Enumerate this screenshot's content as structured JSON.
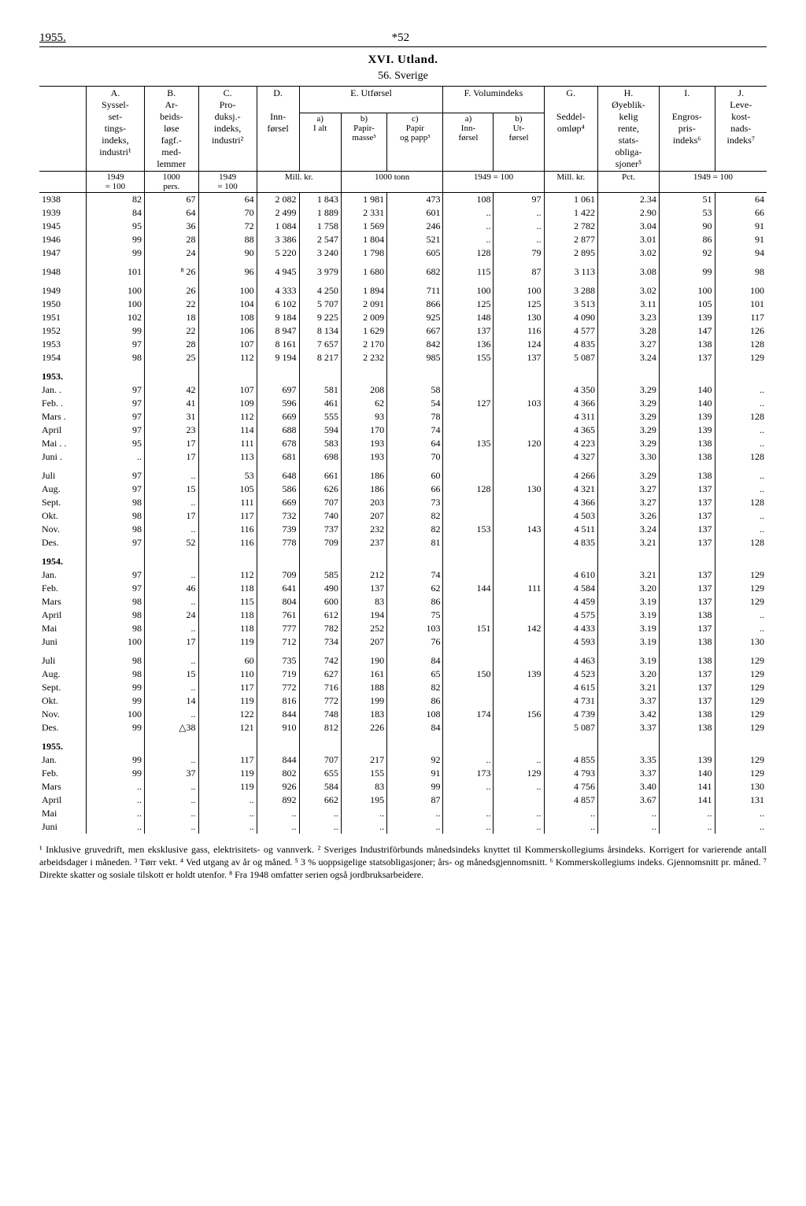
{
  "page": {
    "year": "1955.",
    "page_number": "*52",
    "section_title": "XVI. Utland.",
    "subtitle": "56. Sverige"
  },
  "headers": {
    "A": "A.\nSyssel-\nset-\ntings-\nindeks,\nindustri¹",
    "B": "B.\nAr-\nbeids-\nløse\nfagf.-\nmed-\nlemmer",
    "C": "C.\nPro-\nduksj.-\nindeks,\nindustri²",
    "D": "D.\n\nInn-\nførsel",
    "E": "E.\nUtførsel",
    "E_a": "a)\nI alt",
    "E_b": "b)\nPapir-\nmasse³",
    "E_c": "c)\nPapir\nog papp³",
    "F": "F.\nVolumindeks",
    "F_a": "a)\nInn-\nførsel",
    "F_b": "b)\nUt-\nførsel",
    "G": "G.\n\nSeddel-\nomløp⁴",
    "H": "H.\nØyeblik-\nkelig\nrente,\nstats-\nobliga-\nsjoner⁵",
    "I": "I.\n\nEngros-\npris-\nindeks⁶",
    "J": "J.\nLeve-\nkost-\nnads-\nindeks⁷"
  },
  "units": {
    "A": "1949\n= 100",
    "B": "1000\npers.",
    "C": "1949\n= 100",
    "DE": "Mill. kr.",
    "Ebc": "1000 tonn",
    "F": "1949 = 100",
    "G": "Mill. kr.",
    "H": "Pct.",
    "IJ": "1949 = 100"
  },
  "rows": [
    {
      "label": "1938",
      "A": "82",
      "B": "67",
      "C": "64",
      "D": "2 082",
      "Ea": "1 843",
      "Eb": "1 981",
      "Ec": "473",
      "Fa": "108",
      "Fb": "97",
      "G": "1 061",
      "H": "2.34",
      "I": "51",
      "J": "64"
    },
    {
      "label": "1939",
      "A": "84",
      "B": "64",
      "C": "70",
      "D": "2 499",
      "Ea": "1 889",
      "Eb": "2 331",
      "Ec": "601",
      "Fa": "..",
      "Fb": "..",
      "G": "1 422",
      "H": "2.90",
      "I": "53",
      "J": "66"
    },
    {
      "label": "1945",
      "A": "95",
      "B": "36",
      "C": "72",
      "D": "1 084",
      "Ea": "1 758",
      "Eb": "1 569",
      "Ec": "246",
      "Fa": "..",
      "Fb": "..",
      "G": "2 782",
      "H": "3.04",
      "I": "90",
      "J": "91"
    },
    {
      "label": "1946",
      "A": "99",
      "B": "28",
      "C": "88",
      "D": "3 386",
      "Ea": "2 547",
      "Eb": "1 804",
      "Ec": "521",
      "Fa": "..",
      "Fb": "..",
      "G": "2 877",
      "H": "3.01",
      "I": "86",
      "J": "91"
    },
    {
      "label": "1947",
      "A": "99",
      "B": "24",
      "C": "90",
      "D": "5 220",
      "Ea": "3 240",
      "Eb": "1 798",
      "Ec": "605",
      "Fa": "128",
      "Fb": "79",
      "G": "2 895",
      "H": "3.02",
      "I": "92",
      "J": "94"
    },
    {
      "label": "1948",
      "A": "101",
      "B": "⁸ 26",
      "C": "96",
      "D": "4 945",
      "Ea": "3 979",
      "Eb": "1 680",
      "Ec": "682",
      "Fa": "115",
      "Fb": "87",
      "G": "3 113",
      "H": "3.08",
      "I": "99",
      "J": "98",
      "spacer": true
    },
    {
      "label": "1949",
      "A": "100",
      "B": "26",
      "C": "100",
      "D": "4 333",
      "Ea": "4 250",
      "Eb": "1 894",
      "Ec": "711",
      "Fa": "100",
      "Fb": "100",
      "G": "3 288",
      "H": "3.02",
      "I": "100",
      "J": "100",
      "spacer": true
    },
    {
      "label": "1950",
      "A": "100",
      "B": "22",
      "C": "104",
      "D": "6 102",
      "Ea": "5 707",
      "Eb": "2 091",
      "Ec": "866",
      "Fa": "125",
      "Fb": "125",
      "G": "3 513",
      "H": "3.11",
      "I": "105",
      "J": "101"
    },
    {
      "label": "1951",
      "A": "102",
      "B": "18",
      "C": "108",
      "D": "9 184",
      "Ea": "9 225",
      "Eb": "2 009",
      "Ec": "925",
      "Fa": "148",
      "Fb": "130",
      "G": "4 090",
      "H": "3.23",
      "I": "139",
      "J": "117"
    },
    {
      "label": "1952",
      "A": "99",
      "B": "22",
      "C": "106",
      "D": "8 947",
      "Ea": "8 134",
      "Eb": "1 629",
      "Ec": "667",
      "Fa": "137",
      "Fb": "116",
      "G": "4 577",
      "H": "3.28",
      "I": "147",
      "J": "126"
    },
    {
      "label": "1953",
      "A": "97",
      "B": "28",
      "C": "107",
      "D": "8 161",
      "Ea": "7 657",
      "Eb": "2 170",
      "Ec": "842",
      "Fa": "136",
      "Fb": "124",
      "G": "4 835",
      "H": "3.27",
      "I": "138",
      "J": "128"
    },
    {
      "label": "1954",
      "A": "98",
      "B": "25",
      "C": "112",
      "D": "9 194",
      "Ea": "8 217",
      "Eb": "2 232",
      "Ec": "985",
      "Fa": "155",
      "Fb": "137",
      "G": "5 087",
      "H": "3.24",
      "I": "137",
      "J": "129"
    },
    {
      "label": "1953.",
      "group": true
    },
    {
      "label": "Jan. .",
      "A": "97",
      "B": "42",
      "C": "107",
      "D": "697",
      "Ea": "581",
      "Eb": "208",
      "Ec": "58",
      "Fa": "",
      "Fb": "",
      "G": "4 350",
      "H": "3.29",
      "I": "140",
      "J": ".."
    },
    {
      "label": "Feb. .",
      "A": "97",
      "B": "41",
      "C": "109",
      "D": "596",
      "Ea": "461",
      "Eb": "62",
      "Ec": "54",
      "Fa": "127",
      "Fb": "103",
      "G": "4 366",
      "H": "3.29",
      "I": "140",
      "J": ".."
    },
    {
      "label": "Mars .",
      "A": "97",
      "B": "31",
      "C": "112",
      "D": "669",
      "Ea": "555",
      "Eb": "93",
      "Ec": "78",
      "Fa": "",
      "Fb": "",
      "G": "4 311",
      "H": "3.29",
      "I": "139",
      "J": "128"
    },
    {
      "label": "April",
      "A": "97",
      "B": "23",
      "C": "114",
      "D": "688",
      "Ea": "594",
      "Eb": "170",
      "Ec": "74",
      "Fa": "",
      "Fb": "",
      "G": "4 365",
      "H": "3.29",
      "I": "139",
      "J": ".."
    },
    {
      "label": "Mai . .",
      "A": "95",
      "B": "17",
      "C": "111",
      "D": "678",
      "Ea": "583",
      "Eb": "193",
      "Ec": "64",
      "Fa": "135",
      "Fb": "120",
      "G": "4 223",
      "H": "3.29",
      "I": "138",
      "J": ".."
    },
    {
      "label": "Juni .",
      "A": "..",
      "B": "17",
      "C": "113",
      "D": "681",
      "Ea": "698",
      "Eb": "193",
      "Ec": "70",
      "Fa": "",
      "Fb": "",
      "G": "4 327",
      "H": "3.30",
      "I": "138",
      "J": "128"
    },
    {
      "label": "Juli",
      "A": "97",
      "B": "..",
      "C": "53",
      "D": "648",
      "Ea": "661",
      "Eb": "186",
      "Ec": "60",
      "Fa": "",
      "Fb": "",
      "G": "4 266",
      "H": "3.29",
      "I": "138",
      "J": "..",
      "spacer": true
    },
    {
      "label": "Aug.",
      "A": "97",
      "B": "15",
      "C": "105",
      "D": "586",
      "Ea": "626",
      "Eb": "186",
      "Ec": "66",
      "Fa": "128",
      "Fb": "130",
      "G": "4 321",
      "H": "3.27",
      "I": "137",
      "J": ".."
    },
    {
      "label": "Sept.",
      "A": "98",
      "B": "..",
      "C": "111",
      "D": "669",
      "Ea": "707",
      "Eb": "203",
      "Ec": "73",
      "Fa": "",
      "Fb": "",
      "G": "4 366",
      "H": "3.27",
      "I": "137",
      "J": "128"
    },
    {
      "label": "Okt.",
      "A": "98",
      "B": "17",
      "C": "117",
      "D": "732",
      "Ea": "740",
      "Eb": "207",
      "Ec": "82",
      "Fa": "",
      "Fb": "",
      "G": "4 503",
      "H": "3.26",
      "I": "137",
      "J": ".."
    },
    {
      "label": "Nov.",
      "A": "98",
      "B": "..",
      "C": "116",
      "D": "739",
      "Ea": "737",
      "Eb": "232",
      "Ec": "82",
      "Fa": "153",
      "Fb": "143",
      "G": "4 511",
      "H": "3.24",
      "I": "137",
      "J": ".."
    },
    {
      "label": "Des.",
      "A": "97",
      "B": "52",
      "C": "116",
      "D": "778",
      "Ea": "709",
      "Eb": "237",
      "Ec": "81",
      "Fa": "",
      "Fb": "",
      "G": "4 835",
      "H": "3.21",
      "I": "137",
      "J": "128"
    },
    {
      "label": "1954.",
      "group": true
    },
    {
      "label": "Jan.",
      "A": "97",
      "B": "..",
      "C": "112",
      "D": "709",
      "Ea": "585",
      "Eb": "212",
      "Ec": "74",
      "Fa": "",
      "Fb": "",
      "G": "4 610",
      "H": "3.21",
      "I": "137",
      "J": "129"
    },
    {
      "label": "Feb.",
      "A": "97",
      "B": "46",
      "C": "118",
      "D": "641",
      "Ea": "490",
      "Eb": "137",
      "Ec": "62",
      "Fa": "144",
      "Fb": "111",
      "G": "4 584",
      "H": "3.20",
      "I": "137",
      "J": "129"
    },
    {
      "label": "Mars",
      "A": "98",
      "B": "..",
      "C": "115",
      "D": "804",
      "Ea": "600",
      "Eb": "83",
      "Ec": "86",
      "Fa": "",
      "Fb": "",
      "G": "4 459",
      "H": "3.19",
      "I": "137",
      "J": "129"
    },
    {
      "label": "April",
      "A": "98",
      "B": "24",
      "C": "118",
      "D": "761",
      "Ea": "612",
      "Eb": "194",
      "Ec": "75",
      "Fa": "",
      "Fb": "",
      "G": "4 575",
      "H": "3.19",
      "I": "138",
      "J": ".."
    },
    {
      "label": "Mai",
      "A": "98",
      "B": "..",
      "C": "118",
      "D": "777",
      "Ea": "782",
      "Eb": "252",
      "Ec": "103",
      "Fa": "151",
      "Fb": "142",
      "G": "4 433",
      "H": "3.19",
      "I": "137",
      "J": ".."
    },
    {
      "label": "Juni",
      "A": "100",
      "B": "17",
      "C": "119",
      "D": "712",
      "Ea": "734",
      "Eb": "207",
      "Ec": "76",
      "Fa": "",
      "Fb": "",
      "G": "4 593",
      "H": "3.19",
      "I": "138",
      "J": "130"
    },
    {
      "label": "Juli",
      "A": "98",
      "B": "..",
      "C": "60",
      "D": "735",
      "Ea": "742",
      "Eb": "190",
      "Ec": "84",
      "Fa": "",
      "Fb": "",
      "G": "4 463",
      "H": "3.19",
      "I": "138",
      "J": "129",
      "spacer": true
    },
    {
      "label": "Aug.",
      "A": "98",
      "B": "15",
      "C": "110",
      "D": "719",
      "Ea": "627",
      "Eb": "161",
      "Ec": "65",
      "Fa": "150",
      "Fb": "139",
      "G": "4 523",
      "H": "3.20",
      "I": "137",
      "J": "129"
    },
    {
      "label": "Sept.",
      "A": "99",
      "B": "..",
      "C": "117",
      "D": "772",
      "Ea": "716",
      "Eb": "188",
      "Ec": "82",
      "Fa": "",
      "Fb": "",
      "G": "4 615",
      "H": "3.21",
      "I": "137",
      "J": "129"
    },
    {
      "label": "Okt.",
      "A": "99",
      "B": "14",
      "C": "119",
      "D": "816",
      "Ea": "772",
      "Eb": "199",
      "Ec": "86",
      "Fa": "",
      "Fb": "",
      "G": "4 731",
      "H": "3.37",
      "I": "137",
      "J": "129"
    },
    {
      "label": "Nov.",
      "A": "100",
      "B": "..",
      "C": "122",
      "D": "844",
      "Ea": "748",
      "Eb": "183",
      "Ec": "108",
      "Fa": "174",
      "Fb": "156",
      "G": "4 739",
      "H": "3.42",
      "I": "138",
      "J": "129"
    },
    {
      "label": "Des.",
      "A": "99",
      "B": "△38",
      "C": "121",
      "D": "910",
      "Ea": "812",
      "Eb": "226",
      "Ec": "84",
      "Fa": "",
      "Fb": "",
      "G": "5 087",
      "H": "3.37",
      "I": "138",
      "J": "129"
    },
    {
      "label": "1955.",
      "group": true
    },
    {
      "label": "Jan.",
      "A": "99",
      "B": "..",
      "C": "117",
      "D": "844",
      "Ea": "707",
      "Eb": "217",
      "Ec": "92",
      "Fa": "..",
      "Fb": "..",
      "G": "4 855",
      "H": "3.35",
      "I": "139",
      "J": "129"
    },
    {
      "label": "Feb.",
      "A": "99",
      "B": "37",
      "C": "119",
      "D": "802",
      "Ea": "655",
      "Eb": "155",
      "Ec": "91",
      "Fa": "173",
      "Fb": "129",
      "G": "4 793",
      "H": "3.37",
      "I": "140",
      "J": "129"
    },
    {
      "label": "Mars",
      "A": "..",
      "B": "..",
      "C": "119",
      "D": "926",
      "Ea": "584",
      "Eb": "83",
      "Ec": "99",
      "Fa": "..",
      "Fb": "..",
      "G": "4 756",
      "H": "3.40",
      "I": "141",
      "J": "130"
    },
    {
      "label": "April",
      "A": "..",
      "B": "..",
      "C": "..",
      "D": "892",
      "Ea": "662",
      "Eb": "195",
      "Ec": "87",
      "Fa": "",
      "Fb": "",
      "G": "4 857",
      "H": "3.67",
      "I": "141",
      "J": "131"
    },
    {
      "label": "Mai",
      "A": "..",
      "B": "..",
      "C": "..",
      "D": "..",
      "Ea": "..",
      "Eb": "..",
      "Ec": "..",
      "Fa": "..",
      "Fb": "..",
      "G": "..",
      "H": "..",
      "I": "..",
      "J": ".."
    },
    {
      "label": "Juni",
      "A": "..",
      "B": "..",
      "C": "..",
      "D": "..",
      "Ea": "..",
      "Eb": "..",
      "Ec": "..",
      "Fa": "..",
      "Fb": "..",
      "G": "..",
      "H": "..",
      "I": "..",
      "J": ".."
    }
  ],
  "footnotes": "¹ Inklusive gruvedrift, men eksklusive gass, elektrisitets- og vannverk. ² Sveriges Industriförbunds månedsindeks knyttet til Kommerskollegiums årsindeks. Korrigert for varierende antall arbeidsdager i måneden. ³ Tørr vekt. ⁴ Ved utgang av år og måned. ⁵ 3 % uoppsigelige statsobligasjoner; års- og månedsgjennomsnitt. ⁶ Kommerskollegiums indeks. Gjennomsnitt pr. måned. ⁷ Direkte skatter og sosiale tilskott er holdt utenfor. ⁸ Fra 1948 omfatter serien også jordbruksarbeidere."
}
